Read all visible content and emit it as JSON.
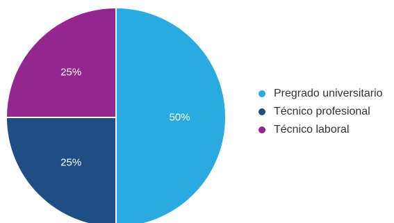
{
  "chart_data": {
    "type": "pie",
    "title": "",
    "slices": [
      {
        "name": "Pregrado universitario",
        "value": 50,
        "label": "50%",
        "color": "#29abe2"
      },
      {
        "name": "Técnico profesional",
        "value": 25,
        "label": "25%",
        "color": "#1f4e84"
      },
      {
        "name": "Técnico laboral",
        "value": 25,
        "label": "25%",
        "color": "#93278f"
      }
    ],
    "legend_position": "right"
  },
  "legend": {
    "items": [
      {
        "label": "Pregrado universitario",
        "color": "#29abe2"
      },
      {
        "label": "Técnico profesional",
        "color": "#1f4e84"
      },
      {
        "label": "Técnico laboral",
        "color": "#93278f"
      }
    ]
  }
}
